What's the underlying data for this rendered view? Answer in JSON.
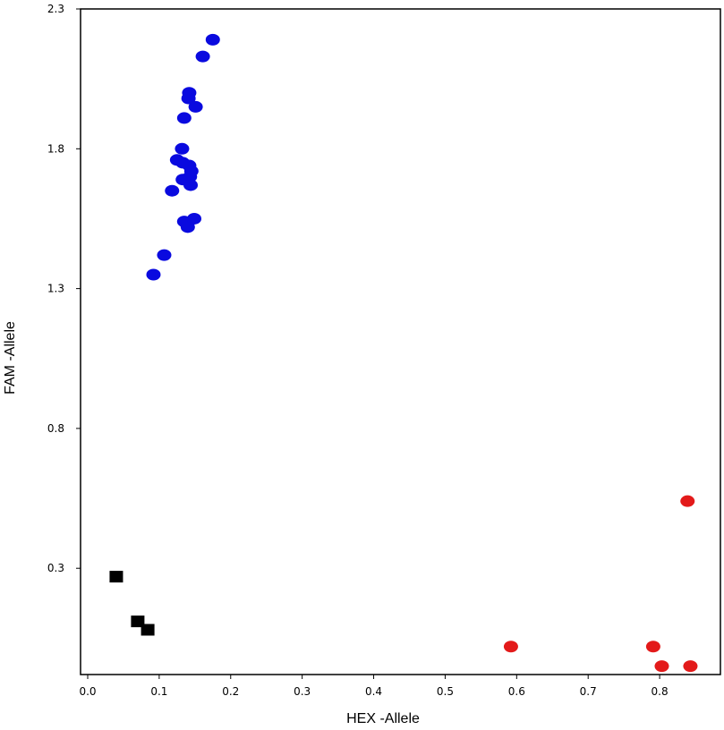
{
  "chart_data": {
    "type": "scatter",
    "title": "",
    "xlabel": "HEX -Allele",
    "ylabel": "FAM -Allele",
    "xlim": [
      -0.01,
      0.885
    ],
    "ylim": [
      -0.08,
      2.3
    ],
    "x_ticks": [
      0.0,
      0.1,
      0.2,
      0.3,
      0.4,
      0.5,
      0.6,
      0.7,
      0.8
    ],
    "x_tick_labels": [
      "0.0",
      "0.1",
      "0.2",
      "0.3",
      "0.4",
      "0.5",
      "0.6",
      "0.7",
      "0.8"
    ],
    "y_ticks": [
      0.3,
      0.8,
      1.3,
      1.8,
      2.3
    ],
    "y_tick_labels": [
      "0.3",
      "0.8",
      "1.3",
      "1.8",
      "2.3"
    ],
    "grid": false,
    "legend": "none",
    "series": [
      {
        "color": "#0a0adf",
        "marker": "ellipse",
        "points": [
          [
            0.175,
            2.19
          ],
          [
            0.161,
            2.13
          ],
          [
            0.142,
            2.0
          ],
          [
            0.141,
            1.98
          ],
          [
            0.151,
            1.95
          ],
          [
            0.135,
            1.91
          ],
          [
            0.132,
            1.8
          ],
          [
            0.125,
            1.76
          ],
          [
            0.133,
            1.75
          ],
          [
            0.142,
            1.74
          ],
          [
            0.145,
            1.72
          ],
          [
            0.143,
            1.7
          ],
          [
            0.133,
            1.69
          ],
          [
            0.144,
            1.67
          ],
          [
            0.118,
            1.65
          ],
          [
            0.135,
            1.54
          ],
          [
            0.149,
            1.55
          ],
          [
            0.14,
            1.52
          ],
          [
            0.107,
            1.42
          ],
          [
            0.092,
            1.35
          ]
        ]
      },
      {
        "color": "#e31a1a",
        "marker": "ellipse",
        "points": [
          [
            0.839,
            0.54
          ],
          [
            0.592,
            0.02
          ],
          [
            0.791,
            0.02
          ],
          [
            0.803,
            -0.05
          ],
          [
            0.843,
            -0.05
          ]
        ]
      },
      {
        "color": "#000000",
        "marker": "square",
        "points": [
          [
            0.04,
            0.27
          ],
          [
            0.07,
            0.11
          ],
          [
            0.084,
            0.08
          ]
        ]
      }
    ]
  }
}
